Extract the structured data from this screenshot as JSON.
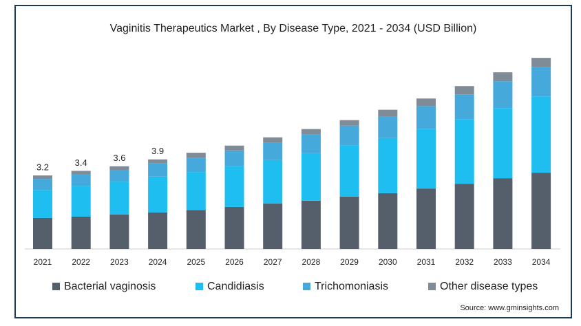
{
  "chart_data": {
    "type": "stacked-bar",
    "title": "Vaginitis Therapeutics Market , By Disease Type, 2021 - 2034 (USD Billion)",
    "categories": [
      "2021",
      "2022",
      "2023",
      "2024",
      "2025",
      "2026",
      "2027",
      "2028",
      "2029",
      "2030",
      "2031",
      "2032",
      "2033",
      "2034"
    ],
    "series": [
      {
        "name": "Bacterial vaginosis",
        "color": "#555f6b",
        "values": [
          1.35,
          1.41,
          1.5,
          1.59,
          1.7,
          1.83,
          1.98,
          2.1,
          2.28,
          2.43,
          2.63,
          2.84,
          3.08,
          3.32
        ]
      },
      {
        "name": "Candidiasis",
        "color": "#1ebef0",
        "values": [
          1.22,
          1.34,
          1.43,
          1.56,
          1.65,
          1.77,
          1.89,
          2.07,
          2.22,
          2.4,
          2.6,
          2.81,
          3.05,
          3.32
        ]
      },
      {
        "name": "Trichomoniasis",
        "color": "#45a9dc",
        "values": [
          0.48,
          0.5,
          0.5,
          0.57,
          0.63,
          0.69,
          0.75,
          0.81,
          0.87,
          0.93,
          0.99,
          1.08,
          1.17,
          1.29
        ]
      },
      {
        "name": "Other disease types",
        "color": "#7f8b96",
        "values": [
          0.15,
          0.15,
          0.17,
          0.18,
          0.21,
          0.21,
          0.24,
          0.24,
          0.24,
          0.3,
          0.33,
          0.36,
          0.39,
          0.39
        ]
      }
    ],
    "total_labels": [
      3.2,
      3.4,
      3.6,
      3.9,
      null,
      null,
      null,
      null,
      null,
      null,
      null,
      null,
      null,
      null
    ],
    "source": "Source: www.gminsights.com"
  }
}
